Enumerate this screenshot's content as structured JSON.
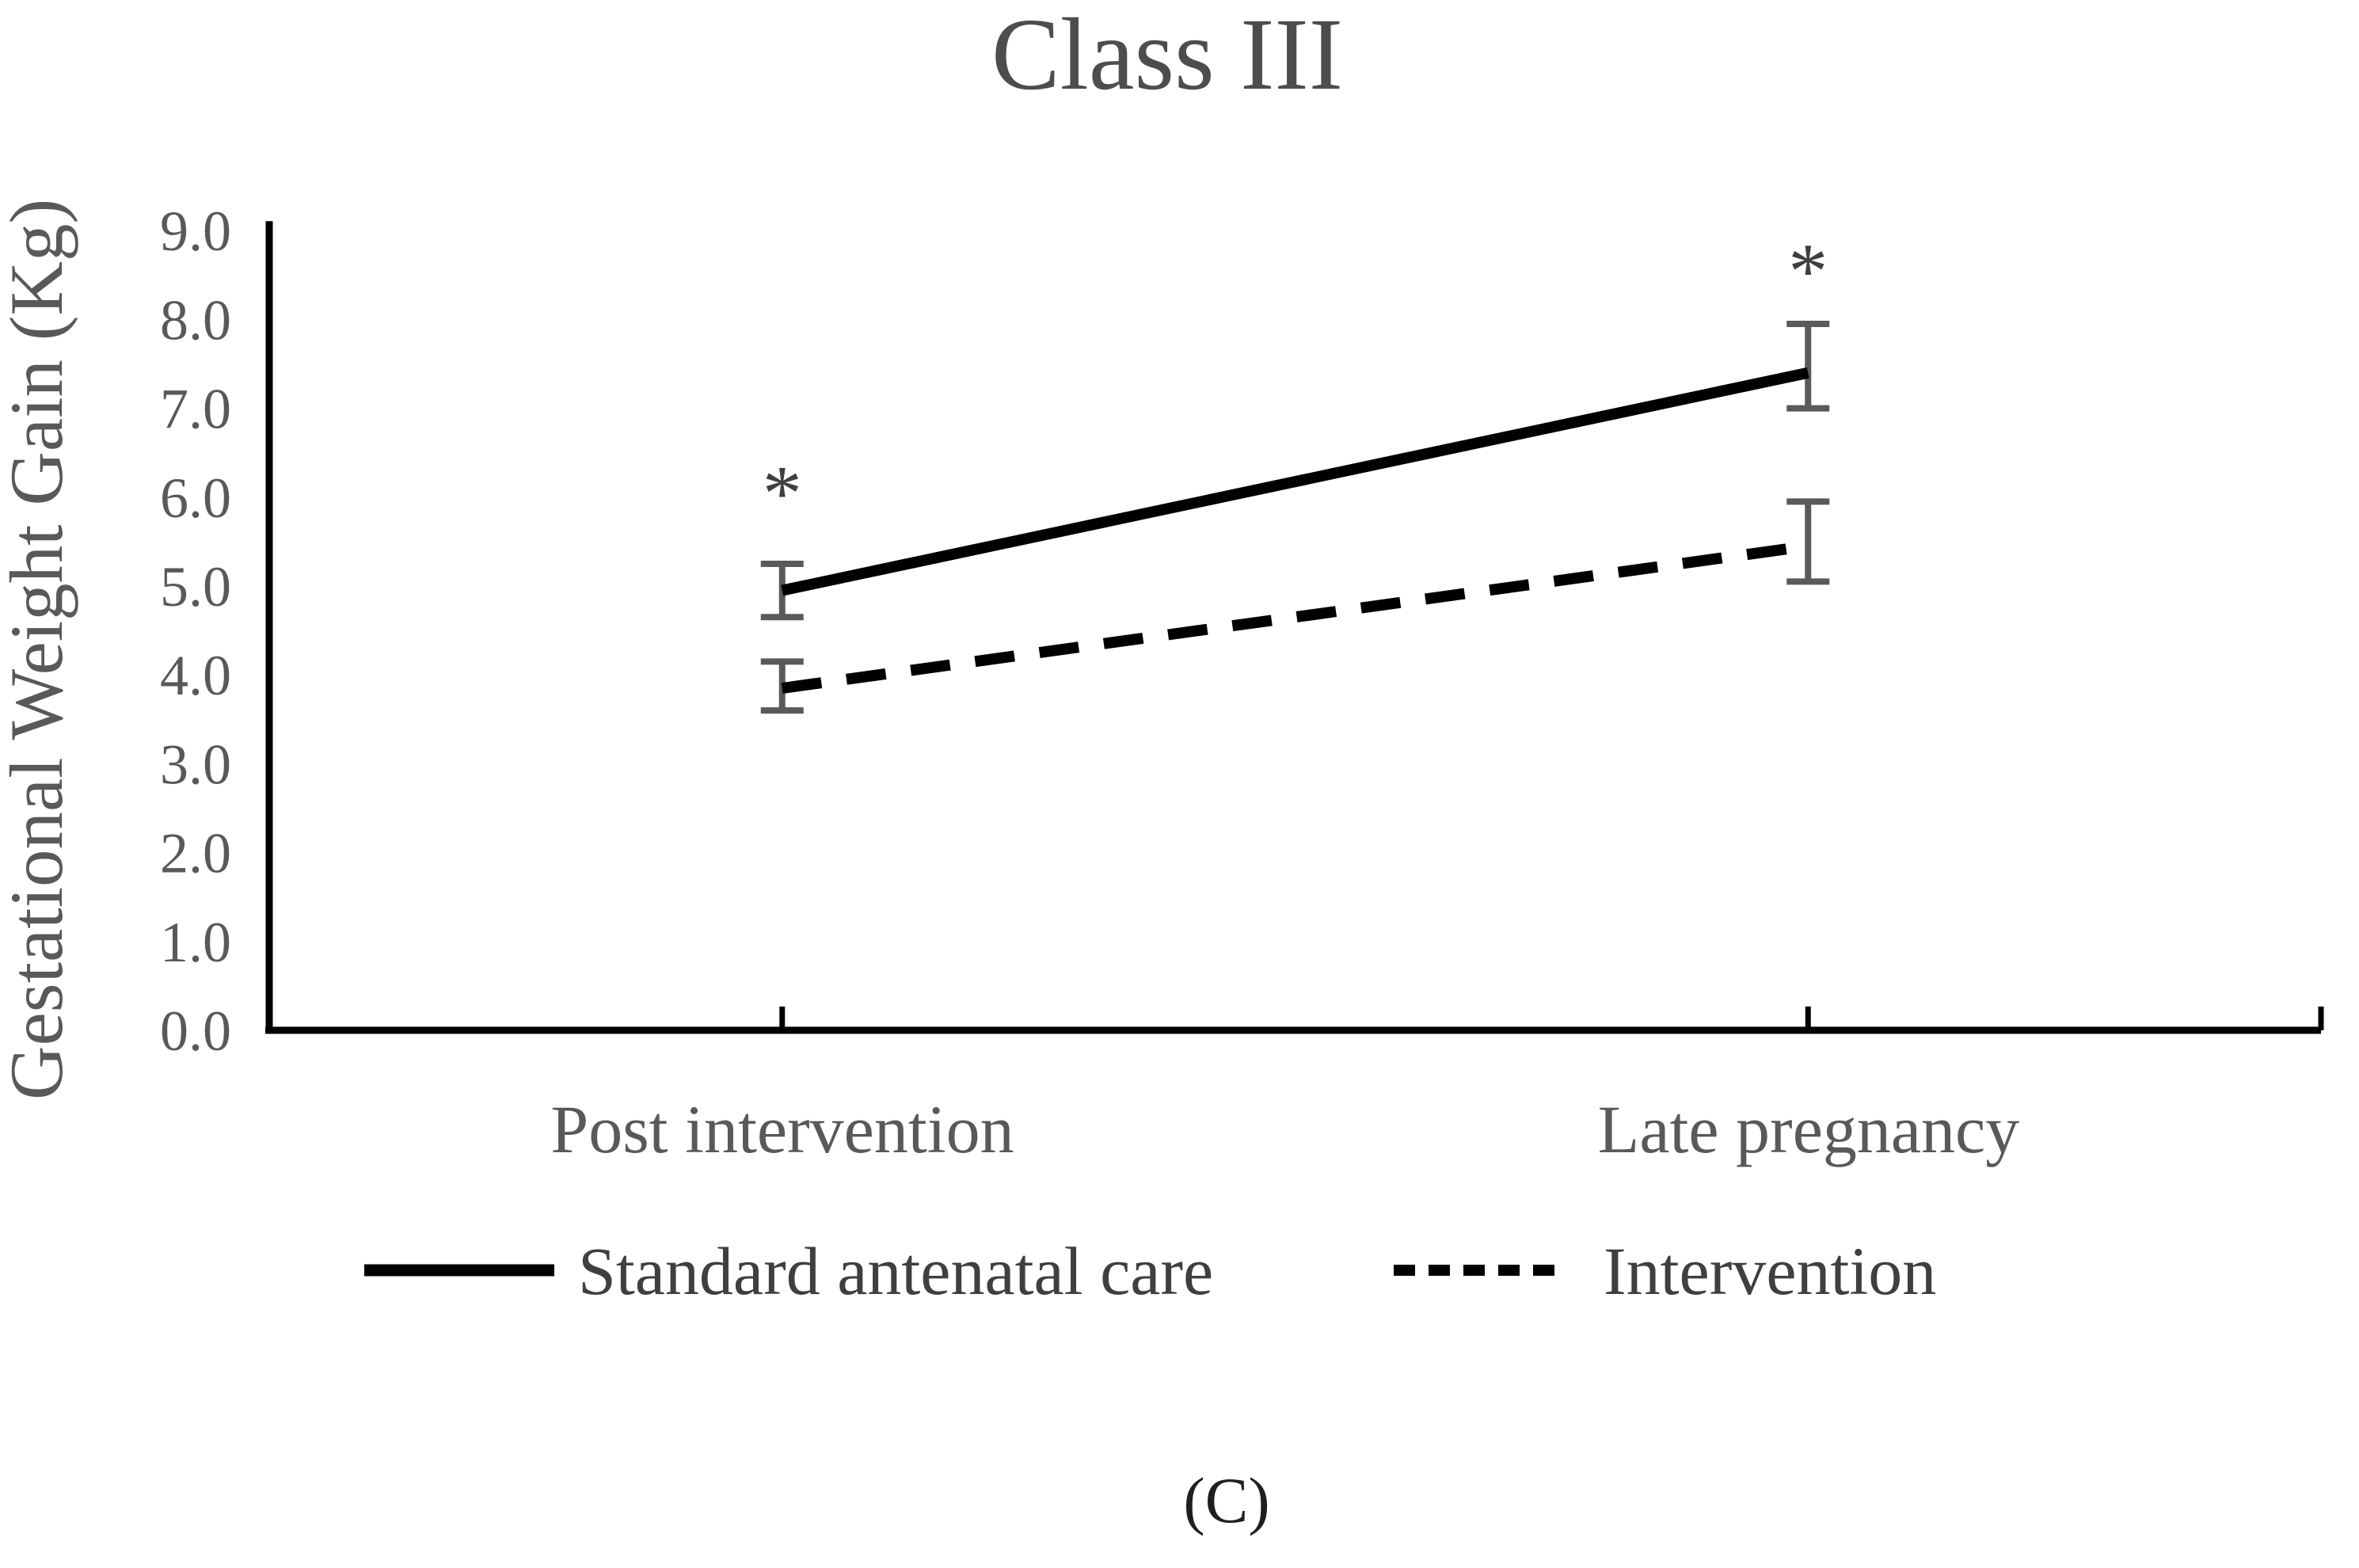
{
  "figure": {
    "title": "Class III",
    "footer_label": "(C)"
  },
  "chart_data": {
    "type": "line",
    "title": "Class III",
    "ylabel": "Gestational Weight Gain (Kg)",
    "xlabel": "",
    "categories": [
      "Post intervention",
      "Late pregnancy"
    ],
    "ylim": [
      0.0,
      9.0
    ],
    "ytick_interval": 1.0,
    "ytick_labels": [
      "0.0",
      "1.0",
      "2.0",
      "3.0",
      "4.0",
      "5.0",
      "6.0",
      "7.0",
      "8.0",
      "9.0"
    ],
    "grid": false,
    "legend_position": "bottom",
    "series": [
      {
        "name": "Standard antenatal care",
        "line_style": "solid",
        "color": "#000000",
        "values": [
          4.95,
          7.4
        ],
        "error_low": [
          4.65,
          7.0
        ],
        "error_high": [
          5.25,
          7.95
        ]
      },
      {
        "name": "Intervention",
        "line_style": "dashed",
        "color": "#000000",
        "values": [
          3.85,
          5.45
        ],
        "error_low": [
          3.6,
          5.05
        ],
        "error_high": [
          4.15,
          5.95
        ]
      }
    ],
    "error_bar_color": "#5a5a5a",
    "annotations": [
      {
        "text": "*",
        "category_index": 0,
        "value": 6.15
      },
      {
        "text": "*",
        "category_index": 1,
        "value": 8.65
      }
    ]
  },
  "colors": {
    "axis": "#000000",
    "text_gray": "#595959",
    "title_gray": "#4d4d4d",
    "series_black": "#000000",
    "error_bar_gray": "#5a5a5a",
    "background": "#ffffff"
  }
}
